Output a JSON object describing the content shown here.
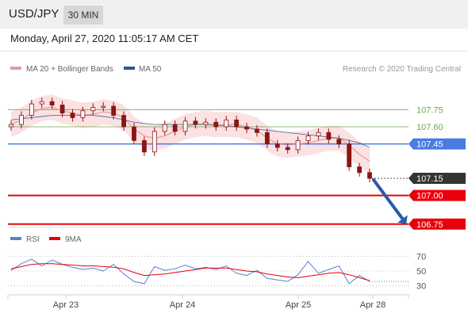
{
  "header": {
    "pair": "USD/JPY",
    "interval": "30 MIN",
    "datetime": "Monday, April 27, 2020 11:05:17 AM CET"
  },
  "legend": {
    "ma20": "MA 20 + Bollinger Bands",
    "ma50": "MA 50",
    "credit": "Research © 2020 Trading Central"
  },
  "colors": {
    "resistance_green": "#6aa84f",
    "pivot_blue": "#4a7be2",
    "support_red": "#e8000b",
    "price_box": "#333333",
    "arrow": "#2a5aa8",
    "ma20": "#e99a9a",
    "ma50": "#2e5597",
    "band_fill": "#fbe1e1",
    "candle": "#8a1515",
    "rsi": "#5a7fd6",
    "rsi_ma": "#e8000b"
  },
  "chart_data": [
    {
      "type": "line",
      "title": "USD/JPY 30 MIN",
      "x_labels": [
        "Apr 23",
        "Apr 24",
        "Apr 25",
        "Apr 28"
      ],
      "ylim": [
        106.7,
        108.05
      ],
      "levels": [
        {
          "label": "107.75",
          "value": 107.75,
          "kind": "resistance"
        },
        {
          "label": "107.60",
          "value": 107.6,
          "kind": "resistance"
        },
        {
          "label": "107.45",
          "value": 107.45,
          "kind": "pivot"
        },
        {
          "label": "107.15",
          "value": 107.15,
          "kind": "last_price"
        },
        {
          "label": "107.00",
          "value": 107.0,
          "kind": "support"
        },
        {
          "label": "106.75",
          "value": 106.75,
          "kind": "support"
        }
      ],
      "series": [
        {
          "name": "MA 20 + Bollinger Bands",
          "values": [
            107.62,
            107.66,
            107.72,
            107.76,
            107.77,
            107.74,
            107.72,
            107.7,
            107.71,
            107.73,
            107.72,
            107.68,
            107.58,
            107.52,
            107.5,
            107.52,
            107.56,
            107.6,
            107.62,
            107.63,
            107.62,
            107.62,
            107.62,
            107.6,
            107.57,
            107.5,
            107.45,
            107.44,
            107.45,
            107.46,
            107.48,
            107.5,
            107.5,
            107.44,
            107.36,
            107.3
          ]
        },
        {
          "name": "MA 50",
          "values": [
            107.66,
            107.67,
            107.68,
            107.69,
            107.7,
            107.7,
            107.7,
            107.7,
            107.7,
            107.69,
            107.68,
            107.66,
            107.64,
            107.63,
            107.62,
            107.62,
            107.62,
            107.62,
            107.62,
            107.62,
            107.61,
            107.61,
            107.6,
            107.59,
            107.58,
            107.57,
            107.56,
            107.55,
            107.54,
            107.53,
            107.52,
            107.51,
            107.5,
            107.48,
            107.46,
            107.42
          ]
        },
        {
          "name": "Close",
          "values": [
            107.62,
            107.7,
            107.8,
            107.82,
            107.79,
            107.72,
            107.68,
            107.74,
            107.77,
            107.78,
            107.7,
            107.6,
            107.48,
            107.38,
            107.56,
            107.62,
            107.56,
            107.65,
            107.62,
            107.64,
            107.6,
            107.66,
            107.6,
            107.58,
            107.55,
            107.45,
            107.42,
            107.4,
            107.48,
            107.52,
            107.55,
            107.49,
            107.45,
            107.25,
            107.2,
            107.15
          ]
        }
      ]
    },
    {
      "type": "line",
      "title": "",
      "x_labels": [
        "Apr 23",
        "Apr 24",
        "Apr 25",
        "Apr 28"
      ],
      "yticks": [
        "70",
        "50",
        "30"
      ],
      "ylim": [
        20,
        80
      ],
      "series": [
        {
          "name": "RSI",
          "values": [
            51,
            60,
            66,
            57,
            65,
            59,
            55,
            52,
            54,
            50,
            59,
            46,
            36,
            33,
            56,
            51,
            53,
            58,
            53,
            55,
            52,
            57,
            47,
            44,
            51,
            40,
            38,
            36,
            45,
            63,
            47,
            52,
            57,
            33,
            44,
            36
          ]
        },
        {
          "name": "9MA",
          "values": [
            53,
            56,
            59,
            60,
            60,
            59,
            58,
            57,
            57,
            56,
            55,
            53,
            48,
            44,
            45,
            46,
            48,
            50,
            52,
            54,
            54,
            54,
            52,
            50,
            49,
            46,
            44,
            42,
            41,
            43,
            45,
            47,
            48,
            45,
            41,
            37
          ]
        }
      ]
    }
  ]
}
